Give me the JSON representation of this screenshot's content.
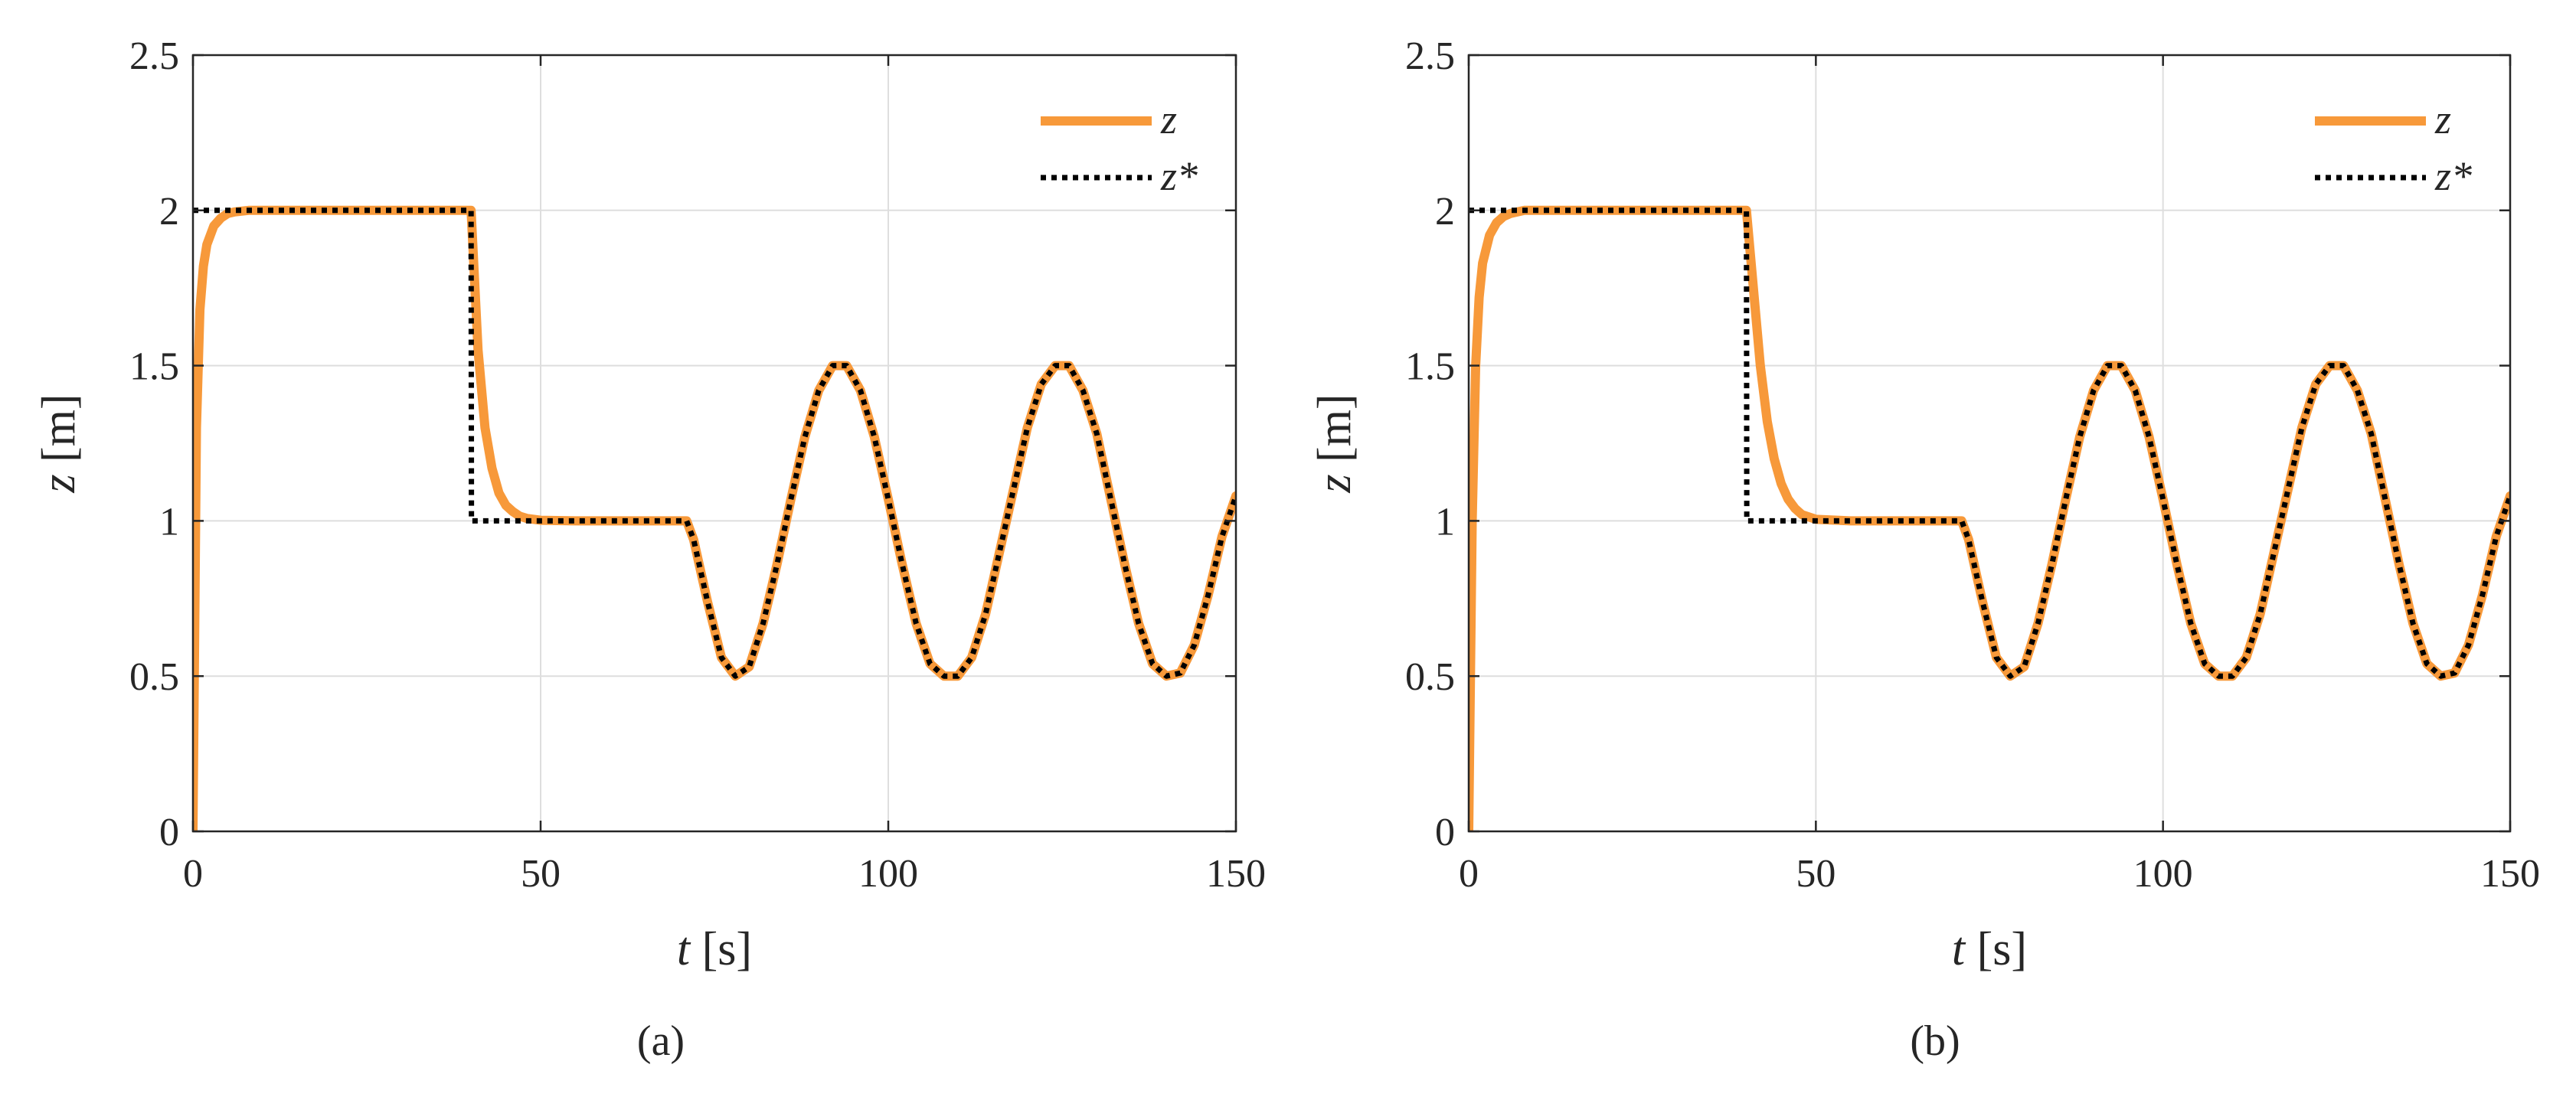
{
  "chart_data": [
    {
      "type": "line",
      "panel_label": "(a)",
      "xlabel_var": "t",
      "xlabel_unit": " [s]",
      "ylabel_var": "z",
      "ylabel_unit": " [m]",
      "xlim": [
        0,
        150
      ],
      "ylim": [
        0,
        2.5
      ],
      "xticks": [
        "0",
        "50",
        "100",
        "150"
      ],
      "yticks": [
        "0",
        "0.5",
        "1",
        "1.5",
        "2",
        "2.5"
      ],
      "grid": true,
      "legend_position": "top-right",
      "series": [
        {
          "name": "z",
          "style": "solid",
          "color": "#f7993a",
          "x": [
            0,
            0.5,
            1,
            1.5,
            2,
            3,
            4,
            5,
            6,
            8,
            10,
            20,
            30,
            40,
            41,
            42,
            43,
            44,
            45,
            46,
            47,
            48,
            50,
            55,
            60,
            65,
            71,
            72,
            74,
            76,
            78,
            80,
            82,
            84,
            86,
            88,
            90,
            92,
            94,
            96,
            98,
            100,
            102,
            104,
            106,
            108,
            110,
            112,
            114,
            116,
            118,
            120,
            122,
            124,
            126,
            128,
            130,
            132,
            134,
            136,
            138,
            140,
            142,
            144,
            146,
            148,
            150
          ],
          "values": [
            0,
            1.3,
            1.68,
            1.82,
            1.89,
            1.95,
            1.975,
            1.99,
            1.995,
            2,
            2,
            2,
            2,
            2,
            1.55,
            1.3,
            1.17,
            1.09,
            1.05,
            1.03,
            1.015,
            1.008,
            1.002,
            1,
            1,
            1,
            1,
            0.94,
            0.74,
            0.56,
            0.5,
            0.53,
            0.67,
            0.86,
            1.07,
            1.27,
            1.42,
            1.5,
            1.5,
            1.42,
            1.27,
            1.07,
            0.86,
            0.67,
            0.54,
            0.5,
            0.5,
            0.56,
            0.7,
            0.9,
            1.1,
            1.3,
            1.44,
            1.5,
            1.5,
            1.42,
            1.28,
            1.07,
            0.86,
            0.67,
            0.54,
            0.5,
            0.51,
            0.6,
            0.76,
            0.95,
            1.08
          ]
        },
        {
          "name": "z*",
          "style": "dotted",
          "color": "#000000",
          "x": [
            0,
            0.05,
            40,
            40.05,
            71,
            72,
            74,
            76,
            78,
            80,
            82,
            84,
            86,
            88,
            90,
            92,
            94,
            96,
            98,
            100,
            102,
            104,
            106,
            108,
            110,
            112,
            114,
            116,
            118,
            120,
            122,
            124,
            126,
            128,
            130,
            132,
            134,
            136,
            138,
            140,
            142,
            144,
            146,
            148,
            150
          ],
          "values": [
            2,
            2,
            2,
            1,
            1,
            0.94,
            0.74,
            0.56,
            0.5,
            0.53,
            0.67,
            0.86,
            1.07,
            1.27,
            1.42,
            1.5,
            1.5,
            1.42,
            1.27,
            1.07,
            0.86,
            0.67,
            0.54,
            0.5,
            0.5,
            0.56,
            0.7,
            0.9,
            1.1,
            1.3,
            1.44,
            1.5,
            1.5,
            1.42,
            1.28,
            1.07,
            0.86,
            0.67,
            0.54,
            0.5,
            0.51,
            0.6,
            0.76,
            0.95,
            1.08
          ]
        }
      ]
    },
    {
      "type": "line",
      "panel_label": "(b)",
      "xlabel_var": "t",
      "xlabel_unit": " [s]",
      "ylabel_var": "z",
      "ylabel_unit": " [m]",
      "xlim": [
        0,
        150
      ],
      "ylim": [
        0,
        2.5
      ],
      "xticks": [
        "0",
        "50",
        "100",
        "150"
      ],
      "yticks": [
        "0",
        "0.5",
        "1",
        "1.5",
        "2",
        "2.5"
      ],
      "grid": true,
      "legend_position": "top-right",
      "series": [
        {
          "name": "z",
          "style": "solid",
          "color": "#f7993a",
          "x": [
            0,
            0.5,
            1,
            1.5,
            2,
            3,
            4,
            5,
            6,
            8,
            10,
            20,
            30,
            40,
            41,
            42,
            43,
            44,
            45,
            46,
            47,
            48,
            50,
            55,
            60,
            65,
            71,
            72,
            74,
            76,
            78,
            80,
            82,
            84,
            86,
            88,
            90,
            92,
            94,
            96,
            98,
            100,
            102,
            104,
            106,
            108,
            110,
            112,
            114,
            116,
            118,
            120,
            122,
            124,
            126,
            128,
            130,
            132,
            134,
            136,
            138,
            140,
            142,
            144,
            146,
            148,
            150
          ],
          "values": [
            0,
            1.0,
            1.5,
            1.72,
            1.83,
            1.92,
            1.96,
            1.98,
            1.99,
            2,
            2,
            2,
            2,
            2,
            1.75,
            1.5,
            1.32,
            1.2,
            1.12,
            1.07,
            1.04,
            1.02,
            1.005,
            1,
            1,
            1,
            1,
            0.94,
            0.74,
            0.56,
            0.5,
            0.53,
            0.67,
            0.86,
            1.07,
            1.27,
            1.42,
            1.5,
            1.5,
            1.42,
            1.27,
            1.07,
            0.86,
            0.67,
            0.54,
            0.5,
            0.5,
            0.56,
            0.7,
            0.9,
            1.1,
            1.3,
            1.44,
            1.5,
            1.5,
            1.42,
            1.28,
            1.07,
            0.86,
            0.67,
            0.54,
            0.5,
            0.51,
            0.6,
            0.76,
            0.95,
            1.08
          ]
        },
        {
          "name": "z*",
          "style": "dotted",
          "color": "#000000",
          "x": [
            0,
            0.05,
            40,
            40.05,
            71,
            72,
            74,
            76,
            78,
            80,
            82,
            84,
            86,
            88,
            90,
            92,
            94,
            96,
            98,
            100,
            102,
            104,
            106,
            108,
            110,
            112,
            114,
            116,
            118,
            120,
            122,
            124,
            126,
            128,
            130,
            132,
            134,
            136,
            138,
            140,
            142,
            144,
            146,
            148,
            150
          ],
          "values": [
            2,
            2,
            2,
            1,
            1,
            0.94,
            0.74,
            0.56,
            0.5,
            0.53,
            0.67,
            0.86,
            1.07,
            1.27,
            1.42,
            1.5,
            1.5,
            1.42,
            1.27,
            1.07,
            0.86,
            0.67,
            0.54,
            0.5,
            0.5,
            0.56,
            0.7,
            0.9,
            1.1,
            1.3,
            1.44,
            1.5,
            1.5,
            1.42,
            1.28,
            1.07,
            0.86,
            0.67,
            0.54,
            0.5,
            0.51,
            0.6,
            0.76,
            0.95,
            1.08
          ]
        }
      ]
    }
  ]
}
